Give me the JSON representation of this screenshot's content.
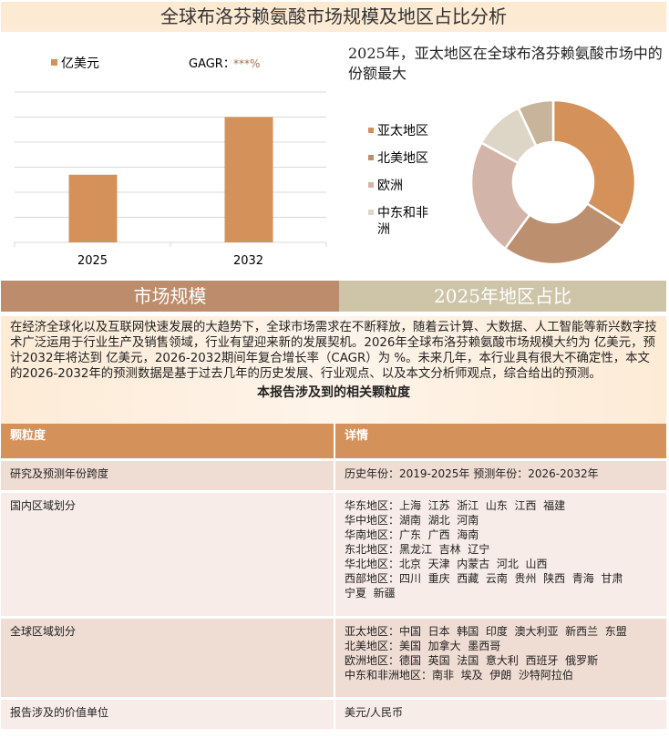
{
  "title": "全球布洛芬赖氨酸市场规模及地区占比分析",
  "chart_data": [
    {
      "type": "bar",
      "categories": [
        "2025",
        "2032"
      ],
      "values": [
        2.7,
        5.0
      ],
      "ylim": [
        0,
        6
      ],
      "grid": true,
      "legend": {
        "label": "亿美元",
        "placement": "top-left"
      },
      "annotation": {
        "label": "GAGR：",
        "value": "***%"
      },
      "color": "#D4915A"
    },
    {
      "type": "pie",
      "title": "2025年，亚太地区在全球布洛芬赖氨酸市场中的份额最大",
      "donut": true,
      "legend_placement": "left",
      "slices": [
        {
          "name": "亚太地区",
          "value": 34,
          "color": "#D4915A"
        },
        {
          "name": "北美地区",
          "value": 26,
          "color": "#BC8F6E"
        },
        {
          "name": "欧洲",
          "value": 23,
          "color": "#D2B4A8"
        },
        {
          "name": "中东和非洲",
          "value": 10,
          "color": "#DDD5C5"
        },
        {
          "value": 7,
          "color": "#C8B49A"
        }
      ]
    }
  ],
  "tabs": [
    {
      "label": "市场规模",
      "color": "#BC8C6C"
    },
    {
      "label": "2025年地区占比",
      "color": "#CEC4A8"
    }
  ],
  "intro": {
    "text": "在经济全球化以及互联网快速发展的大趋势下，全球市场需求在不断释放，随着云计算、大数据、人工智能等新兴数字技术广泛运用于行业生产及销售领域，行业有望迎来新的发展契机。2026年全球布洛芬赖氨酸市场规模大约为 亿美元，预计2032年将达到 亿美元，2026-2032期间年复合增长率（CAGR）为 %。未来几年，本行业具有很大不确定性，本文的2026-2032年的预测数据是基于过去几年的历史发展、行业观点、以及本文分析师观点，综合给出的预测。",
    "heading": "本报告涉及到的相关颗粒度"
  },
  "table": {
    "headers": [
      "颗粒度",
      "详情"
    ],
    "rows": [
      {
        "label": "研究及预测年份跨度",
        "lines": [
          "历史年份：2019-2025年 预测年份：2026-2032年"
        ]
      },
      {
        "label": "国内区域划分",
        "lines": [
          "华东地区：上海  江苏  浙江  山东  江西  福建",
          "华中地区：湖南  湖北  河南",
          "华南地区：广东  广西  海南",
          "东北地区：黑龙江  吉林  辽宁",
          "华北地区：北京  天津  内蒙古  河北  山西",
          "西部地区：四川  重庆  西藏  云南  贵州  陕西  青海  甘肃",
          "宁夏  新疆"
        ]
      },
      {
        "label": "全球区域划分",
        "lines": [
          "亚太地区：中国  日本  韩国  印度  澳大利亚  新西兰  东盟",
          "北美地区：美国  加拿大  墨西哥",
          "欧洲地区：德国  英国  法国  意大利  西班牙  俄罗斯",
          "中东和非洲地区：南非  埃及  伊朗  沙特阿拉伯"
        ]
      },
      {
        "label": "报告涉及的价值单位",
        "lines": [
          "美元/人民币"
        ]
      }
    ]
  }
}
